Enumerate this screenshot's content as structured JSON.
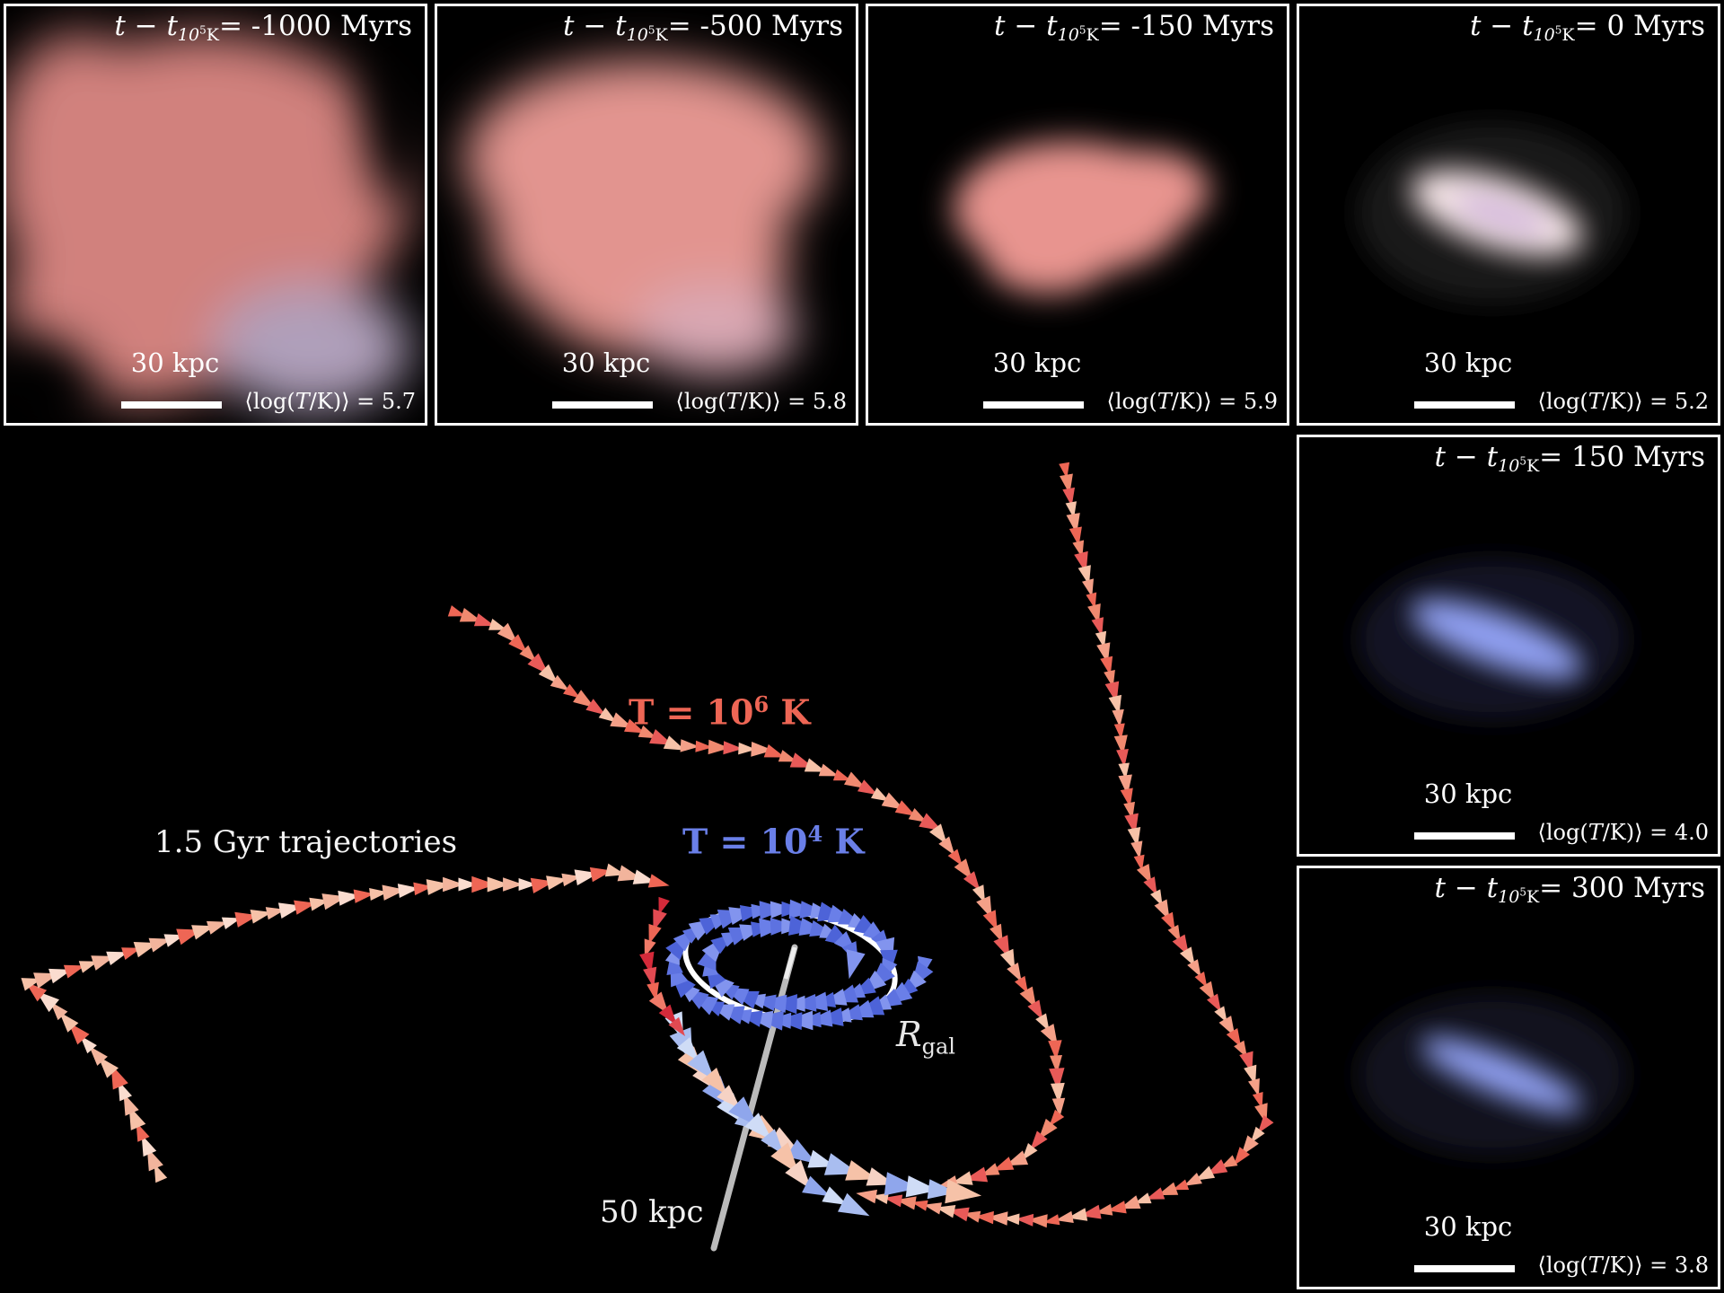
{
  "panels": [
    {
      "time_prefix": "t − t",
      "time_sub": "10",
      "time_sup": "5",
      "time_subK": "K",
      "time_value": "= -1000 Myrs",
      "scale": "30 kpc",
      "logT_prefix": "⟨log(",
      "logT_var": "T",
      "logT_suffix": "/K)⟩ = 5.7",
      "color": "#e08a86"
    },
    {
      "time_prefix": "t − t",
      "time_sub": "10",
      "time_sup": "5",
      "time_subK": "K",
      "time_value": "= -500 Myrs",
      "scale": "30 kpc",
      "logT_prefix": "⟨log(",
      "logT_var": "T",
      "logT_suffix": "/K)⟩ = 5.8",
      "color": "#e29590"
    },
    {
      "time_prefix": "t − t",
      "time_sub": "10",
      "time_sup": "5",
      "time_subK": "K",
      "time_value": "= -150 Myrs",
      "scale": "30 kpc",
      "logT_prefix": "⟨log(",
      "logT_var": "T",
      "logT_suffix": "/K)⟩ = 5.9",
      "color": "#e8948f"
    },
    {
      "time_prefix": "t − t",
      "time_sub": "10",
      "time_sup": "5",
      "time_subK": "K",
      "time_value": "= 0 Myrs",
      "scale": "30 kpc",
      "logT_prefix": "⟨log(",
      "logT_var": "T",
      "logT_suffix": "/K)⟩ = 5.2",
      "color": "#f0d8dc"
    },
    {
      "time_prefix": "t − t",
      "time_sub": "10",
      "time_sup": "5",
      "time_subK": "K",
      "time_value": "= 150 Myrs",
      "scale": "30 kpc",
      "logT_prefix": "⟨log(",
      "logT_var": "T",
      "logT_suffix": "/K)⟩ = 4.0",
      "color": "#8f9ff0"
    },
    {
      "time_prefix": "t − t",
      "time_sub": "10",
      "time_sup": "5",
      "time_subK": "K",
      "time_value": "= 300 Myrs",
      "scale": "30 kpc",
      "logT_prefix": "⟨log(",
      "logT_var": "T",
      "logT_suffix": "/K)⟩ = 3.8",
      "color": "#8f9ff0"
    }
  ],
  "main": {
    "trajectories_label": "1.5 Gyr trajectories",
    "hot_label": "T = 10",
    "hot_exp": "6",
    "hot_unit": " K",
    "cold_label": "T = 10",
    "cold_exp": "4",
    "cold_unit": " K",
    "rgal_label": "R",
    "rgal_sub": "gal",
    "axis_label": "50 kpc"
  },
  "colors": {
    "hot": "#ee6655",
    "cold": "#6a7fe8",
    "warm": "#f6c2a8",
    "pale_blue": "#cfdcf6",
    "dark_red": "#d42a3a",
    "background": "#000000",
    "frame": "#ffffff"
  }
}
